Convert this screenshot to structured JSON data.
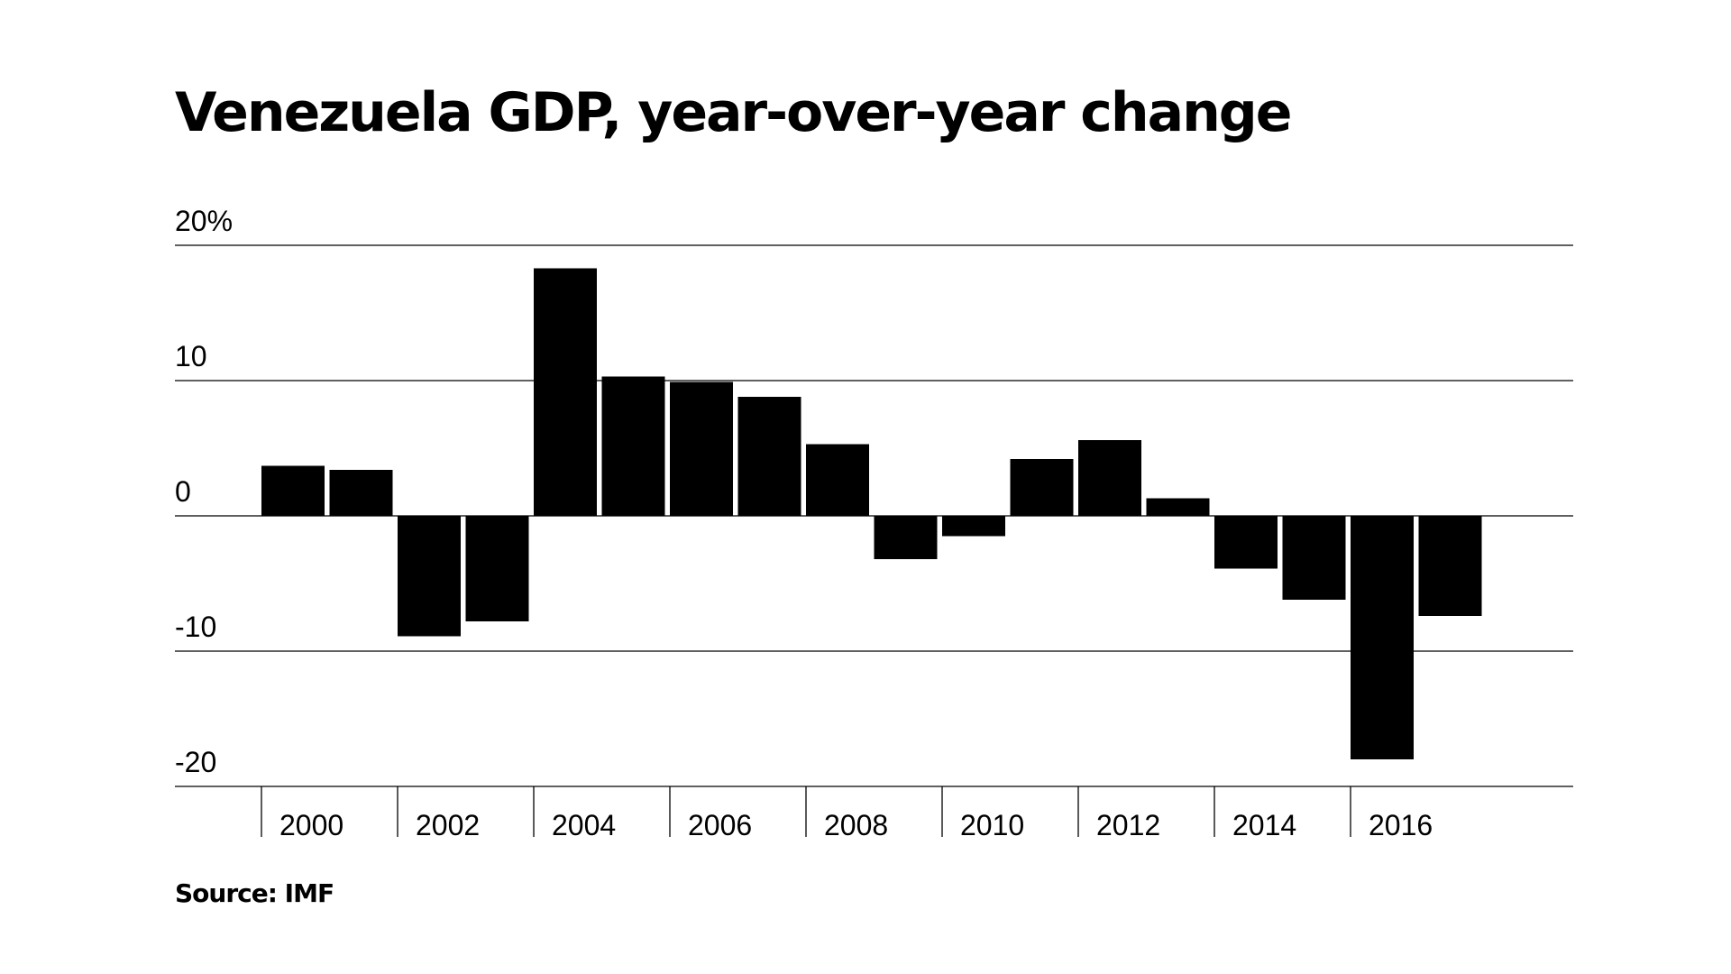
{
  "chart_data": {
    "type": "bar",
    "title": "Venezuela GDP, year-over-year change",
    "source": "Source: IMF",
    "x": [
      2000,
      2001,
      2002,
      2003,
      2004,
      2005,
      2006,
      2007,
      2008,
      2009,
      2010,
      2011,
      2012,
      2013,
      2014,
      2015,
      2016,
      2017
    ],
    "values": [
      3.7,
      3.4,
      -8.9,
      -7.8,
      18.3,
      10.3,
      9.9,
      8.8,
      5.3,
      -3.2,
      -1.5,
      4.2,
      5.6,
      1.3,
      -3.9,
      -6.2,
      -18.0,
      -7.4
    ],
    "ylim": [
      -20,
      20
    ],
    "y_ticks": [
      20,
      10,
      0,
      -10,
      -20
    ],
    "y_tick_labels": [
      "20%",
      "10",
      "0",
      "-10",
      "-20"
    ],
    "x_tick_labels": [
      "2000",
      "2002",
      "2004",
      "2006",
      "2008",
      "2010",
      "2012",
      "2014",
      "2016"
    ],
    "grid": true,
    "legend": "none",
    "bar_color": "#000000",
    "grid_color": "#000000"
  }
}
